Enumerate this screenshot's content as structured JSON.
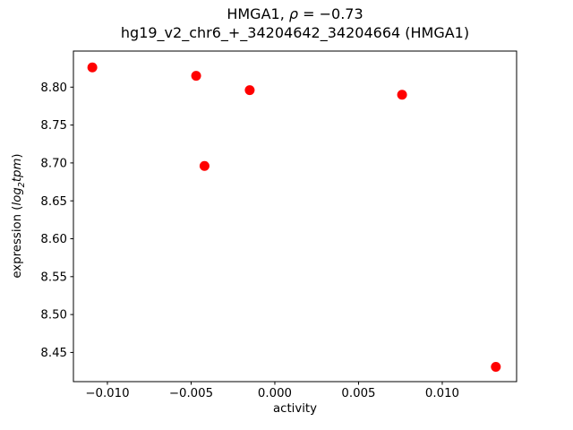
{
  "figure": {
    "title_line1": {
      "prefix": "HMGA1, ",
      "rho": "ρ",
      "suffix": " = −0.73"
    },
    "title_line2": "hg19_v2_chr6_+_34204642_34204664 (HMGA1)",
    "xlabel": "activity",
    "ylabel": {
      "prefix": "expression (",
      "log": "log",
      "sub": "2",
      "tpm": "tpm",
      "suffix": ")"
    }
  },
  "chart_data": {
    "type": "scatter",
    "title": "HMGA1, ρ = −0.73",
    "subtitle": "hg19_v2_chr6_+_34204642_34204664 (HMGA1)",
    "xlabel": "activity",
    "ylabel": "expression (log2 tpm)",
    "grid": false,
    "legend": null,
    "marker_color": "#ff0000",
    "marker_radius_px": 5.5,
    "frame_color": "#000000",
    "text_color": "#000000",
    "xlim": [
      -0.01203,
      0.01444
    ],
    "ylim": [
      8.4115,
      8.8476
    ],
    "xticks": [
      -0.01,
      -0.005,
      0.0,
      0.005,
      0.01
    ],
    "xtick_labels": [
      "−0.010",
      "−0.005",
      "0.000",
      "0.005",
      "0.010"
    ],
    "yticks": [
      8.45,
      8.5,
      8.55,
      8.6,
      8.65,
      8.7,
      8.75,
      8.8
    ],
    "ytick_labels": [
      "8.45",
      "8.50",
      "8.55",
      "8.60",
      "8.65",
      "8.70",
      "8.75",
      "8.80"
    ],
    "points": [
      {
        "x": -0.0109,
        "y": 8.826
      },
      {
        "x": -0.0047,
        "y": 8.815
      },
      {
        "x": -0.0015,
        "y": 8.796
      },
      {
        "x": 0.0076,
        "y": 8.79
      },
      {
        "x": -0.0042,
        "y": 8.696
      },
      {
        "x": 0.0132,
        "y": 8.431
      }
    ]
  }
}
